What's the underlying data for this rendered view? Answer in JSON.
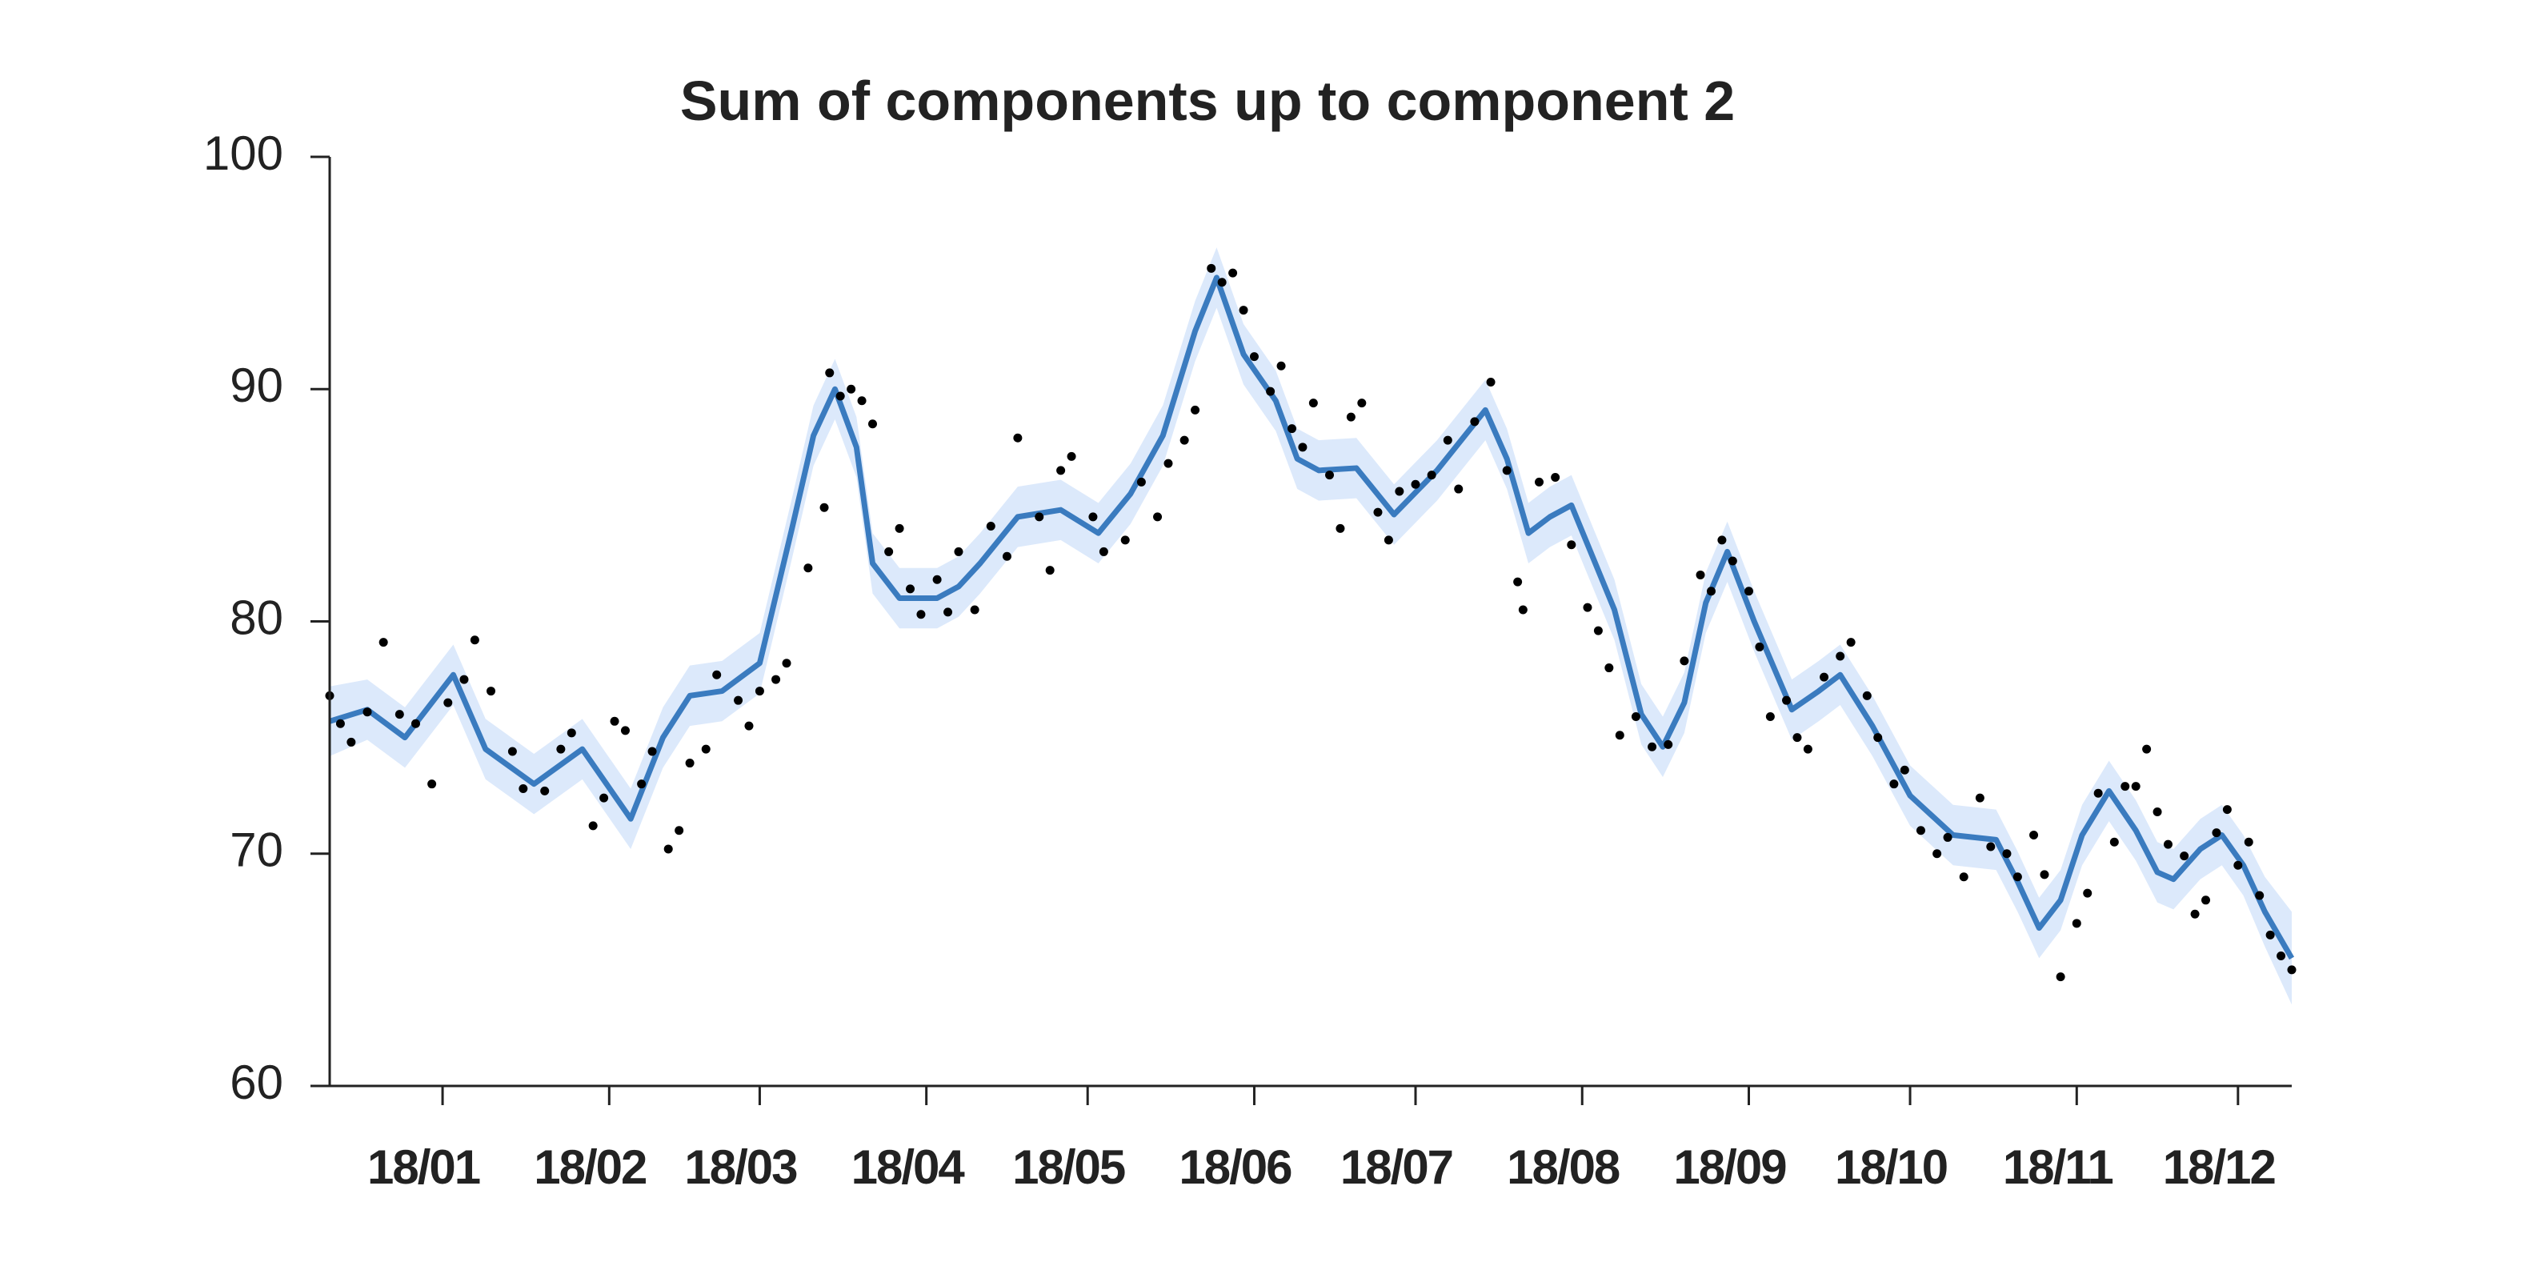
{
  "chart_data": {
    "type": "line",
    "title": "Sum of components up to component 2",
    "color": "#3a7bbf",
    "band_color": "#dce9fb",
    "point_color": "#000000",
    "xlim": [
      -20,
      345
    ],
    "ylim": [
      60,
      100
    ],
    "yticks": [
      60,
      70,
      80,
      90,
      100
    ],
    "xticks": [
      {
        "value": 1,
        "label": "18/01"
      },
      {
        "value": 32,
        "label": "18/02"
      },
      {
        "value": 60,
        "label": "18/03"
      },
      {
        "value": 91,
        "label": "18/04"
      },
      {
        "value": 121,
        "label": "18/05"
      },
      {
        "value": 152,
        "label": "18/06"
      },
      {
        "value": 182,
        "label": "18/07"
      },
      {
        "value": 213,
        "label": "18/08"
      },
      {
        "value": 244,
        "label": "18/09"
      },
      {
        "value": 274,
        "label": "18/10"
      },
      {
        "value": 305,
        "label": "18/11"
      },
      {
        "value": 335,
        "label": "18/12"
      }
    ],
    "x": [
      -20,
      -13,
      -6,
      3,
      9,
      18,
      27,
      36,
      42,
      47,
      53,
      60,
      66,
      70,
      74,
      78,
      81,
      86,
      93,
      97,
      101,
      108,
      116,
      123,
      129,
      135,
      141,
      145,
      150,
      156,
      160,
      164,
      171,
      178,
      186,
      195,
      199,
      203,
      207,
      211,
      219,
      224,
      228,
      232,
      236,
      240,
      245,
      252,
      257,
      261,
      267,
      274,
      282,
      290,
      294,
      298,
      302,
      306,
      311,
      316,
      320,
      323,
      328,
      332,
      336,
      340,
      345
    ],
    "values": [
      75.7,
      76.2,
      75.0,
      77.7,
      74.5,
      73.0,
      74.5,
      71.5,
      75.0,
      76.8,
      77.0,
      78.2,
      84.0,
      88.0,
      90.0,
      87.5,
      82.5,
      81.0,
      81.0,
      81.5,
      82.5,
      84.5,
      84.8,
      83.8,
      85.5,
      88.0,
      92.5,
      94.8,
      91.5,
      89.5,
      87.0,
      86.5,
      86.6,
      84.6,
      86.5,
      89.1,
      87.0,
      83.8,
      84.5,
      85.0,
      80.5,
      76.0,
      74.6,
      76.5,
      80.8,
      83.0,
      80.0,
      76.2,
      77.0,
      77.7,
      75.5,
      72.5,
      70.8,
      70.6,
      68.8,
      66.8,
      68.0,
      70.8,
      72.7,
      71.0,
      69.2,
      68.9,
      70.2,
      70.8,
      69.5,
      67.5,
      65.5
    ],
    "lower": [
      74.2,
      74.9,
      73.7,
      76.4,
      73.2,
      71.7,
      73.2,
      70.2,
      73.7,
      75.5,
      75.7,
      76.9,
      82.7,
      86.7,
      88.7,
      86.2,
      81.2,
      79.7,
      79.7,
      80.2,
      81.2,
      83.2,
      83.5,
      82.5,
      84.2,
      86.7,
      91.2,
      93.5,
      90.2,
      88.2,
      85.7,
      85.2,
      85.3,
      83.3,
      85.2,
      87.8,
      85.7,
      82.5,
      83.2,
      83.7,
      79.2,
      74.7,
      73.3,
      75.2,
      79.5,
      81.7,
      78.7,
      74.9,
      75.7,
      76.4,
      74.2,
      71.2,
      69.5,
      69.3,
      67.5,
      65.5,
      66.7,
      69.5,
      71.4,
      69.7,
      67.9,
      67.6,
      68.9,
      69.5,
      68.2,
      66.0,
      63.5
    ],
    "upper": [
      77.2,
      77.5,
      76.3,
      79.0,
      75.8,
      74.3,
      75.8,
      72.8,
      76.3,
      78.1,
      78.3,
      79.5,
      85.3,
      89.3,
      91.3,
      88.8,
      83.8,
      82.3,
      82.3,
      82.8,
      83.8,
      85.8,
      86.1,
      85.1,
      86.8,
      89.3,
      93.8,
      96.1,
      92.8,
      90.8,
      88.3,
      87.8,
      87.9,
      85.9,
      87.8,
      90.4,
      88.3,
      85.1,
      85.8,
      86.3,
      81.8,
      77.3,
      75.9,
      77.8,
      82.1,
      84.3,
      81.3,
      77.5,
      78.3,
      79.0,
      76.8,
      73.8,
      72.1,
      71.9,
      70.1,
      68.1,
      69.3,
      72.1,
      74.0,
      72.3,
      70.5,
      70.2,
      71.5,
      72.1,
      70.8,
      69.0,
      67.5
    ],
    "points_x": [
      -20,
      -18,
      -16,
      -13,
      -10,
      -7,
      -4,
      -1,
      2,
      5,
      7,
      10,
      14,
      16,
      20,
      23,
      25,
      29,
      31,
      33,
      35,
      38,
      40,
      43,
      45,
      47,
      50,
      52,
      56,
      58,
      60,
      63,
      65,
      69,
      72,
      73,
      75,
      77,
      79,
      81,
      84,
      86,
      88,
      90,
      93,
      95,
      97,
      100,
      103,
      106,
      108,
      112,
      114,
      116,
      118,
      122,
      124,
      128,
      131,
      134,
      136,
      139,
      141,
      144,
      146,
      148,
      150,
      152,
      155,
      157,
      159,
      161,
      163,
      166,
      168,
      170,
      172,
      175,
      177,
      179,
      182,
      185,
      188,
      190,
      193,
      196,
      199,
      201,
      202,
      205,
      208,
      211,
      214,
      216,
      218,
      220,
      223,
      226,
      229,
      232,
      235,
      237,
      239,
      241,
      244,
      246,
      248,
      251,
      253,
      255,
      258,
      261,
      263,
      266,
      268,
      271,
      273,
      276,
      279,
      281,
      284,
      287,
      289,
      292,
      294,
      297,
      299,
      302,
      305,
      307,
      309,
      312,
      314,
      316,
      318,
      320,
      322,
      325,
      327,
      329,
      331,
      333,
      335,
      337,
      339,
      341,
      343,
      345
    ],
    "points_y": [
      76.8,
      75.6,
      74.8,
      76.1,
      79.1,
      76.0,
      75.6,
      73.0,
      76.5,
      77.5,
      79.2,
      77.0,
      74.4,
      72.8,
      72.7,
      74.5,
      75.2,
      71.2,
      72.4,
      75.7,
      75.3,
      73.0,
      74.4,
      70.2,
      71.0,
      73.9,
      74.5,
      77.7,
      76.6,
      75.5,
      77.0,
      77.5,
      78.2,
      82.3,
      84.9,
      90.7,
      89.7,
      90.0,
      89.5,
      88.5,
      83.0,
      84.0,
      81.4,
      80.3,
      81.8,
      80.4,
      83.0,
      80.5,
      84.1,
      82.8,
      87.9,
      84.5,
      82.2,
      86.5,
      87.1,
      84.5,
      83.0,
      83.5,
      86.0,
      84.5,
      86.8,
      87.8,
      89.1,
      95.2,
      94.6,
      95.0,
      93.4,
      91.4,
      89.9,
      91.0,
      88.3,
      87.5,
      89.4,
      86.3,
      84.0,
      88.8,
      89.4,
      84.7,
      83.5,
      85.6,
      85.9,
      86.3,
      87.8,
      85.7,
      88.6,
      90.3,
      86.5,
      81.7,
      80.5,
      86.0,
      86.2,
      83.3,
      80.6,
      79.6,
      78.0,
      75.1,
      75.9,
      74.6,
      74.7,
      78.3,
      82.0,
      81.3,
      83.5,
      82.6,
      81.3,
      78.9,
      75.9,
      76.6,
      75.0,
      74.5,
      77.6,
      78.5,
      79.1,
      76.8,
      75.0,
      73.0,
      73.6,
      71.0,
      70.0,
      70.7,
      69.0,
      72.4,
      70.3,
      70.0,
      69.0,
      70.8,
      69.1,
      64.7,
      67.0,
      68.3,
      72.6,
      70.5,
      72.9,
      72.9,
      74.5,
      71.8,
      70.4,
      69.9,
      67.4,
      68.0,
      70.9,
      71.9,
      69.5,
      70.5,
      68.2,
      66.5,
      65.6,
      65.0
    ]
  }
}
